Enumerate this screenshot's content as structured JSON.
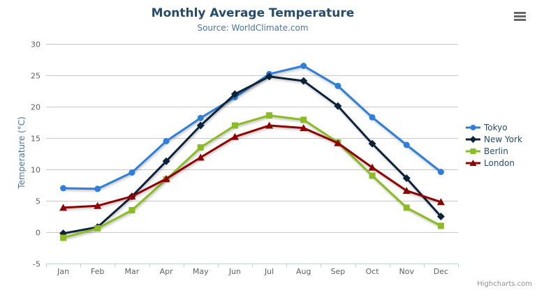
{
  "header": {
    "title": "Monthly Average Temperature",
    "subtitle": "Source: WorldClimate.com"
  },
  "chart_data": {
    "type": "line",
    "title": "Monthly Average Temperature",
    "subtitle": "Source: WorldClimate.com",
    "xlabel": "",
    "ylabel": "Temperature (°C)",
    "ylim": [
      -5,
      30
    ],
    "ytick_interval": 5,
    "yticks": [
      -5,
      0,
      5,
      10,
      15,
      20,
      25,
      30
    ],
    "categories": [
      "Jan",
      "Feb",
      "Mar",
      "Apr",
      "May",
      "Jun",
      "Jul",
      "Aug",
      "Sep",
      "Oct",
      "Nov",
      "Dec"
    ],
    "grid": true,
    "legend_position": "right-middle",
    "series": [
      {
        "name": "Tokyo",
        "color": "#2f7ed8",
        "marker": "circle",
        "values": [
          7.0,
          6.9,
          9.5,
          14.5,
          18.2,
          21.5,
          25.2,
          26.5,
          23.3,
          18.3,
          13.9,
          9.6
        ]
      },
      {
        "name": "New York",
        "color": "#0d233a",
        "marker": "diamond",
        "values": [
          -0.2,
          0.8,
          5.7,
          11.3,
          17.0,
          22.0,
          24.8,
          24.1,
          20.1,
          14.1,
          8.6,
          2.5
        ]
      },
      {
        "name": "Berlin",
        "color": "#8bbc21",
        "marker": "square",
        "values": [
          -0.9,
          0.6,
          3.5,
          8.4,
          13.5,
          17.0,
          18.6,
          17.9,
          14.3,
          9.0,
          3.9,
          1.0
        ]
      },
      {
        "name": "London",
        "color": "#910000",
        "marker": "triangle",
        "values": [
          3.9,
          4.2,
          5.7,
          8.5,
          11.9,
          15.2,
          17.0,
          16.6,
          14.2,
          10.3,
          6.6,
          4.8
        ]
      }
    ],
    "colors": {
      "title_text": "#274b6d",
      "subtitle_text": "#4d759e",
      "axis_title_text": "#4d759e",
      "axis_label_text": "#606060",
      "grid_line": "#c8c8c8",
      "axis_line": "#c0d0e0",
      "tick_mark": "#c0d0e0",
      "legend_text": "#274b6d",
      "credits_text": "#909090",
      "menu_icon": "#666666"
    }
  },
  "credits": {
    "label": "Highcharts.com"
  },
  "toolbar": {
    "menu_icon": "hamburger-icon"
  }
}
